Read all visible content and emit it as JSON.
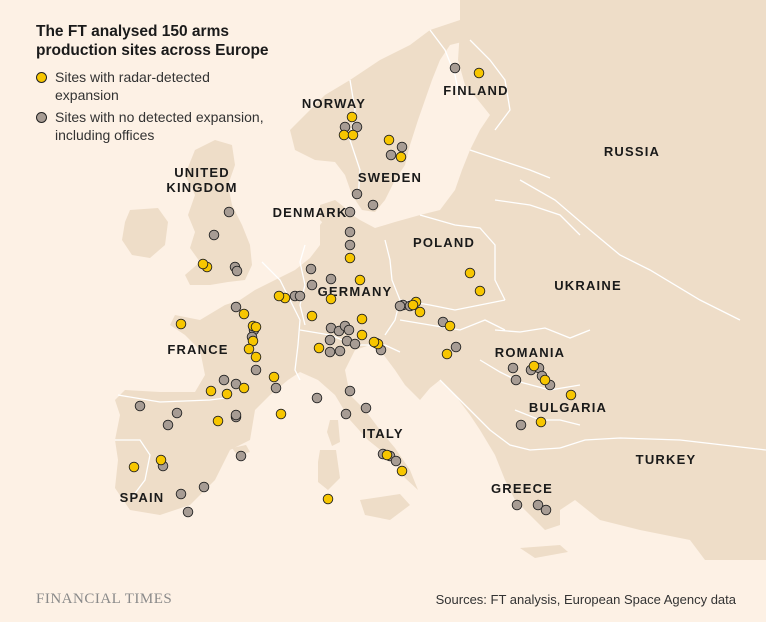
{
  "title": "The FT analysed 150 arms production sites across Europe",
  "legend": {
    "radar": "Sites with radar-detected expansion",
    "none": "Sites with no detected expansion, including offices"
  },
  "colors": {
    "sea": "#fdf1e5",
    "land": "#eeddc8",
    "border": "#ffffff",
    "radar_site": "#f7c600",
    "other_site": "#a79c94",
    "dot_stroke": "#222222"
  },
  "country_labels": {
    "norway": "NORWAY",
    "finland": "FINLAND",
    "sweden": "SWEDEN",
    "russia": "RUSSIA",
    "united_kingdom": "UNITED KINGDOM",
    "denmark": "DENMARK",
    "poland": "POLAND",
    "germany": "GERMANY",
    "ukraine": "UKRAINE",
    "france": "FRANCE",
    "romania": "ROMANIA",
    "bulgaria": "BULGARIA",
    "italy": "ITALY",
    "turkey": "TURKEY",
    "greece": "GREECE",
    "spain": "SPAIN"
  },
  "footer": {
    "logo": "FINANCIAL TIMES",
    "sources": "Sources: FT analysis, European Space Agency data"
  }
}
